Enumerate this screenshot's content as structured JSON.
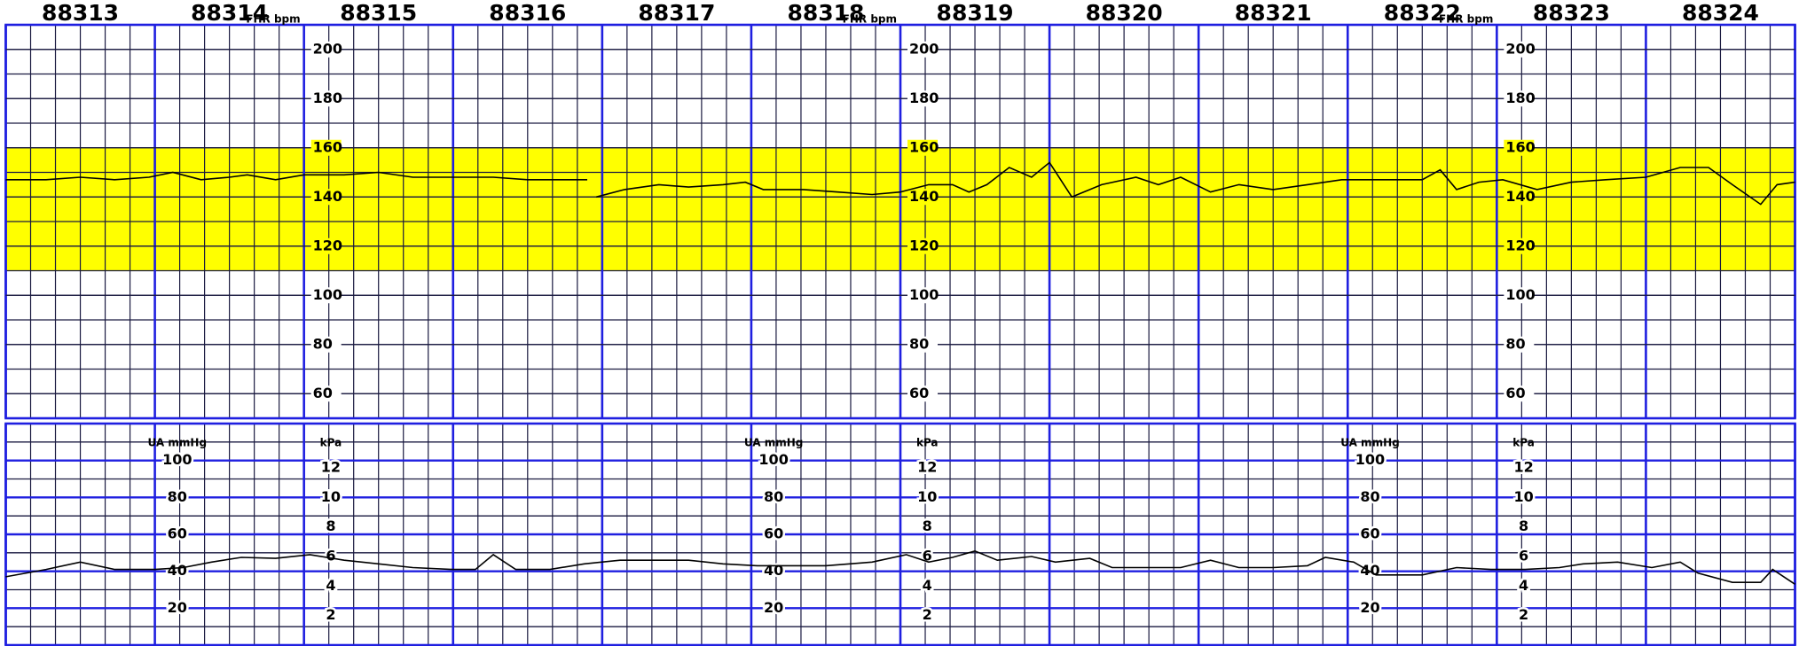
{
  "chart_data": [
    {
      "type": "line",
      "y_label": "FHR bpm",
      "color": "#000000",
      "band": [
        110,
        160
      ],
      "band_color": "#ffff00",
      "xlim": [
        88312.5,
        88324.5
      ],
      "xticks": [
        88313,
        88314,
        88315,
        88316,
        88317,
        88318,
        88319,
        88320,
        88321,
        88322,
        88323,
        88324
      ],
      "ylim": [
        50,
        210
      ],
      "yticks": [
        60,
        80,
        100,
        120,
        140,
        160,
        180,
        200
      ],
      "x": [
        88312.5,
        88312.77,
        88313.0,
        88313.23,
        88313.46,
        88313.62,
        88313.81,
        88314.0,
        88314.12,
        88314.31,
        88314.5,
        88314.77,
        88315.0,
        88315.23,
        88315.5,
        88315.77,
        88316.0,
        88316.23,
        88316.4,
        88316.43,
        88316.46,
        88316.65,
        88316.88,
        88317.08,
        88317.31,
        88317.46,
        88317.58,
        88317.85,
        88318.08,
        88318.31,
        88318.5,
        88318.69,
        88318.85,
        88318.96,
        88319.08,
        88319.23,
        88319.38,
        88319.5,
        88319.65,
        88319.85,
        88320.08,
        88320.23,
        88320.38,
        88320.58,
        88320.77,
        88321.0,
        88321.23,
        88321.46,
        88321.69,
        88322.0,
        88322.12,
        88322.23,
        88322.38,
        88322.54,
        88322.77,
        88323.0,
        88323.23,
        88323.5,
        88323.73,
        88323.92,
        88324.08,
        88324.27,
        88324.38,
        88324.5
      ],
      "values": [
        147,
        147,
        148,
        147,
        148,
        150,
        147,
        148,
        149,
        147,
        149,
        149,
        150,
        148,
        148,
        148,
        147,
        147,
        147,
        null,
        140,
        143,
        145,
        144,
        145,
        146,
        143,
        143,
        142,
        141,
        142,
        145,
        145,
        142,
        145,
        152,
        148,
        154,
        140,
        145,
        148,
        145,
        148,
        142,
        145,
        143,
        145,
        147,
        147,
        147,
        151,
        143,
        146,
        147,
        143,
        146,
        147,
        148,
        152,
        152,
        145,
        137,
        145,
        146
      ]
    },
    {
      "type": "line",
      "y_label": "UA mmHg",
      "y2_label": "kPa",
      "color": "#000000",
      "xlim": [
        88312.5,
        88324.5
      ],
      "ylim": [
        0,
        120
      ],
      "yticks": [
        20,
        40,
        60,
        80,
        100
      ],
      "y2lim": [
        0,
        15
      ],
      "y2ticks": [
        2,
        4,
        6,
        8,
        10,
        12
      ],
      "x": [
        88312.5,
        88312.77,
        88313.0,
        88313.23,
        88313.5,
        88313.69,
        88313.88,
        88314.08,
        88314.31,
        88314.54,
        88314.77,
        88315.0,
        88315.23,
        88315.5,
        88315.65,
        88315.77,
        88315.92,
        88316.15,
        88316.38,
        88316.62,
        88316.85,
        88317.08,
        88317.31,
        88317.54,
        88317.77,
        88318.0,
        88318.31,
        88318.54,
        88318.69,
        88318.85,
        88319.0,
        88319.15,
        88319.38,
        88319.54,
        88319.77,
        88319.92,
        88320.15,
        88320.38,
        88320.58,
        88320.77,
        88321.0,
        88321.23,
        88321.35,
        88321.54,
        88321.69,
        88322.0,
        88322.23,
        88322.46,
        88322.69,
        88322.92,
        88323.08,
        88323.31,
        88323.54,
        88323.73,
        88323.85,
        88324.08,
        88324.27,
        88324.35,
        88324.5
      ],
      "values": [
        37,
        41,
        45,
        41,
        41,
        42,
        45,
        47.5,
        47,
        49,
        46,
        44,
        42,
        41,
        41,
        49,
        41,
        41,
        44,
        46,
        46,
        46,
        44,
        43,
        43,
        43,
        45,
        49,
        45,
        47.5,
        51,
        46,
        48,
        45,
        47,
        42,
        42,
        42,
        46,
        42,
        42,
        43,
        47.5,
        45,
        38,
        38,
        42,
        41,
        41,
        42,
        44,
        45,
        42,
        45,
        39,
        34,
        34,
        41,
        33
      ]
    }
  ]
}
